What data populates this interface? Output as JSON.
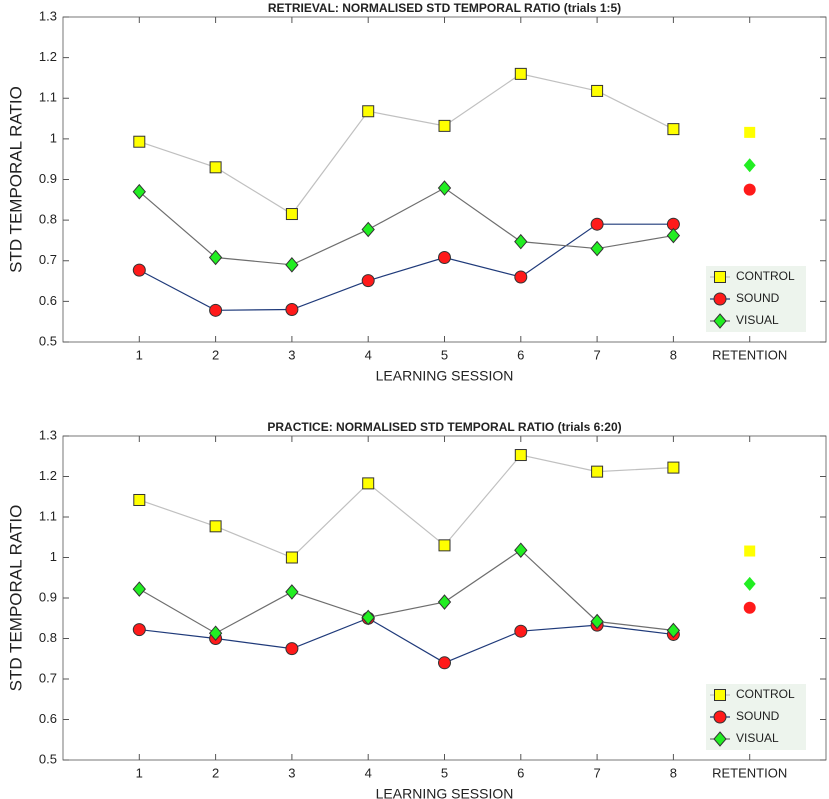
{
  "chart_data": [
    {
      "type": "line",
      "title": "RETRIEVAL: NORMALISED STD TEMPORAL RATIO (trials 1:5)",
      "xlabel": "LEARNING SESSION",
      "ylabel": "STD TEMPORAL RATIO",
      "x": [
        1,
        2,
        3,
        4,
        5,
        6,
        7,
        8
      ],
      "xlim": [
        0,
        10
      ],
      "xticks": [
        1,
        2,
        3,
        4,
        5,
        6,
        7,
        8,
        {
          "value": 9,
          "label": "RETENTION"
        }
      ],
      "ylim": [
        0.5,
        1.3
      ],
      "yticks": [
        0.5,
        0.6,
        0.7,
        0.8,
        0.9,
        1,
        1.1,
        1.2,
        1.3
      ],
      "legend": "lower right",
      "series": [
        {
          "name": "CONTROL",
          "color": "#c0c0c0",
          "marker_color": "#ffff00",
          "marker": "square",
          "values": [
            0.993,
            0.93,
            0.815,
            1.068,
            1.032,
            1.16,
            1.118,
            1.024
          ],
          "retention": 1.016
        },
        {
          "name": "SOUND",
          "color": "#1f3a7a",
          "marker_color": "#ff1a1a",
          "marker": "circle",
          "values": [
            0.677,
            0.578,
            0.58,
            0.651,
            0.708,
            0.66,
            0.79,
            0.79
          ],
          "retention": 0.875
        },
        {
          "name": "VISUAL",
          "color": "#6e6e6e",
          "marker_color": "#22ee22",
          "marker": "diamond",
          "values": [
            0.87,
            0.708,
            0.69,
            0.777,
            0.879,
            0.747,
            0.73,
            0.762
          ],
          "retention": 0.935
        }
      ]
    },
    {
      "type": "line",
      "title": "PRACTICE: NORMALISED STD TEMPORAL RATIO (trials 6:20)",
      "xlabel": "LEARNING SESSION",
      "ylabel": "STD TEMPORAL RATIO",
      "x": [
        1,
        2,
        3,
        4,
        5,
        6,
        7,
        8
      ],
      "xlim": [
        0,
        10
      ],
      "xticks": [
        1,
        2,
        3,
        4,
        5,
        6,
        7,
        8,
        {
          "value": 9,
          "label": "RETENTION"
        }
      ],
      "ylim": [
        0.5,
        1.3
      ],
      "yticks": [
        0.5,
        0.6,
        0.7,
        0.8,
        0.9,
        1,
        1.1,
        1.2,
        1.3
      ],
      "legend": "lower right",
      "series": [
        {
          "name": "CONTROL",
          "color": "#c0c0c0",
          "marker_color": "#ffff00",
          "marker": "square",
          "values": [
            1.142,
            1.077,
            1.0,
            1.183,
            1.03,
            1.253,
            1.212,
            1.222
          ],
          "retention": 1.016
        },
        {
          "name": "SOUND",
          "color": "#1f3a7a",
          "marker_color": "#ff1a1a",
          "marker": "circle",
          "values": [
            0.822,
            0.8,
            0.775,
            0.85,
            0.74,
            0.818,
            0.833,
            0.81
          ],
          "retention": 0.876
        },
        {
          "name": "VISUAL",
          "color": "#6e6e6e",
          "marker_color": "#22ee22",
          "marker": "diamond",
          "values": [
            0.922,
            0.813,
            0.915,
            0.852,
            0.89,
            1.018,
            0.842,
            0.82
          ],
          "retention": 0.935
        }
      ]
    }
  ]
}
